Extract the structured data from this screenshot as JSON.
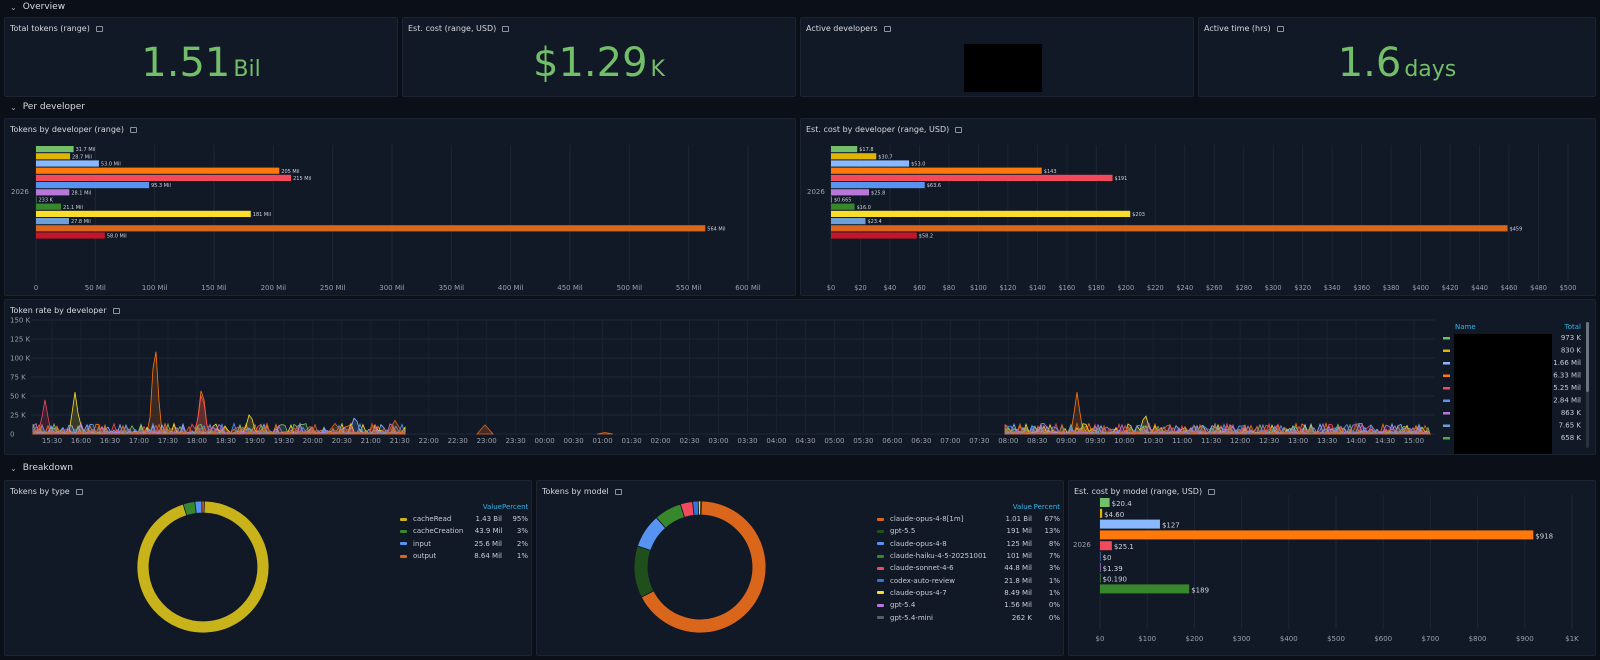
{
  "rows": {
    "overview": "Overview",
    "per_developer": "Per developer",
    "breakdown": "Breakdown"
  },
  "stats": {
    "total_tokens": {
      "title": "Total tokens (range)",
      "value": "1.51",
      "unit": "Bil"
    },
    "est_cost": {
      "title": "Est. cost (range, USD)",
      "value": "$1.29",
      "unit": "K"
    },
    "active_devs": {
      "title": "Active developers"
    },
    "active_time": {
      "title": "Active time (hrs)",
      "value": "1.6",
      "unit": "days"
    }
  },
  "colors": {
    "stat_green": "#73bf69",
    "panel_bg": "#111826",
    "legend_header": "#33b5e5"
  },
  "chart_data": [
    {
      "id": "tokens_by_developer",
      "title": "Tokens by developer (range)",
      "type": "bar",
      "orientation": "horizontal",
      "category": "2026",
      "labels": [
        "31.7 Mil",
        "28.7 Mil",
        "53.0 Mil",
        "205 Mil",
        "215 Mil",
        "95.3 Mil",
        "28.1 Mil",
        "233 K",
        "21.1 Mil",
        "181 Mil",
        "27.8 Mil",
        "564 Mil",
        "58.0 Mil"
      ],
      "values": [
        31.7,
        28.7,
        53.0,
        205,
        215,
        95.3,
        28.1,
        0.233,
        21.1,
        181,
        27.8,
        564,
        58.0
      ],
      "colors": [
        "#73bf69",
        "#e0b400",
        "#8ab8ff",
        "#ff780a",
        "#f2495c",
        "#5794f2",
        "#b877d9",
        "#56a64b",
        "#37872d",
        "#fade2a",
        "#6e9fd8",
        "#d9661a",
        "#c4162a"
      ],
      "xlim": [
        0,
        600
      ],
      "xticks": [
        "0",
        "50 Mil",
        "100 Mil",
        "150 Mil",
        "200 Mil",
        "250 Mil",
        "300 Mil",
        "350 Mil",
        "400 Mil",
        "450 Mil",
        "500 Mil",
        "550 Mil",
        "600 Mil"
      ]
    },
    {
      "id": "cost_by_developer",
      "title": "Est. cost by developer (range, USD)",
      "type": "bar",
      "orientation": "horizontal",
      "category": "2026",
      "labels": [
        "$17.8",
        "$30.7",
        "$53.0",
        "$143",
        "$191",
        "$63.6",
        "$25.8",
        "$0.665",
        "$16.0",
        "$203",
        "$23.4",
        "$459",
        "$58.2"
      ],
      "values": [
        17.8,
        30.7,
        53.0,
        143,
        191,
        63.6,
        25.8,
        0.665,
        16.0,
        203,
        23.4,
        459,
        58.2
      ],
      "colors": [
        "#73bf69",
        "#e0b400",
        "#8ab8ff",
        "#ff780a",
        "#f2495c",
        "#5794f2",
        "#b877d9",
        "#56a64b",
        "#37872d",
        "#fade2a",
        "#6e9fd8",
        "#d9661a",
        "#c4162a"
      ],
      "xlim": [
        0,
        500
      ],
      "xticks": [
        "$0",
        "$20",
        "$40",
        "$60",
        "$80",
        "$100",
        "$120",
        "$140",
        "$160",
        "$180",
        "$200",
        "$220",
        "$240",
        "$260",
        "$280",
        "$300",
        "$320",
        "$340",
        "$360",
        "$380",
        "$400",
        "$420",
        "$440",
        "$460",
        "$480",
        "$500"
      ]
    },
    {
      "id": "token_rate_by_developer",
      "title": "Token rate by developer",
      "type": "area",
      "ylim": [
        0,
        150
      ],
      "yticks": [
        "0",
        "25 K",
        "50 K",
        "75 K",
        "100 K",
        "125 K",
        "150 K"
      ],
      "xticks": [
        "15:30",
        "16:00",
        "16:30",
        "17:00",
        "17:30",
        "18:00",
        "18:30",
        "19:00",
        "19:30",
        "20:00",
        "20:30",
        "21:00",
        "21:30",
        "22:00",
        "22:30",
        "23:00",
        "23:30",
        "00:00",
        "00:30",
        "01:00",
        "01:30",
        "02:00",
        "02:30",
        "03:00",
        "03:30",
        "04:00",
        "04:30",
        "05:00",
        "05:30",
        "06:00",
        "06:30",
        "07:00",
        "07:30",
        "08:00",
        "08:30",
        "09:00",
        "09:30",
        "10:00",
        "10:30",
        "11:00",
        "11:30",
        "12:00",
        "12:30",
        "13:00",
        "13:30",
        "14:00",
        "14:30",
        "15:00"
      ],
      "series_colors": [
        "#ff780a",
        "#fade2a",
        "#8ab8ff",
        "#f2495c",
        "#73bf69",
        "#5794f2",
        "#b877d9",
        "#d9661a"
      ],
      "legend": {
        "name_header": "Name",
        "total_header": "Total",
        "totals": [
          "973 K",
          "830 K",
          "1.66 Mil",
          "6.33 Mil",
          "5.25 Mil",
          "2.84 Mil",
          "863 K",
          "7.65 K",
          "658 K"
        ],
        "colors": [
          "#73bf69",
          "#e0b400",
          "#8ab8ff",
          "#ff780a",
          "#f2495c",
          "#5794f2",
          "#b877d9",
          "#6e9fd8",
          "#56a64b"
        ]
      }
    },
    {
      "id": "tokens_by_type",
      "title": "Tokens by type",
      "type": "pie",
      "donut": true,
      "value_header": "Value",
      "percent_header": "Percent",
      "slices": [
        {
          "name": "cacheRead",
          "value": "1.43 Bil",
          "percent": "95%",
          "pct": 95,
          "color": "#c9b31a"
        },
        {
          "name": "cacheCreation",
          "value": "43.9 Mil",
          "percent": "3%",
          "pct": 2.9,
          "color": "#37872d"
        },
        {
          "name": "input",
          "value": "25.6 Mil",
          "percent": "2%",
          "pct": 1.7,
          "color": "#5794f2"
        },
        {
          "name": "output",
          "value": "8.64 Mil",
          "percent": "1%",
          "pct": 0.6,
          "color": "#d9661a"
        }
      ]
    },
    {
      "id": "tokens_by_model",
      "title": "Tokens by model",
      "type": "pie",
      "donut": true,
      "value_header": "Value",
      "percent_header": "Percent",
      "slices": [
        {
          "name": "claude-opus-4-8[1m]",
          "value": "1.01 Bil",
          "percent": "67%",
          "pct": 67,
          "color": "#d9661a"
        },
        {
          "name": "gpt-5.5",
          "value": "191 Mil",
          "percent": "13%",
          "pct": 12.7,
          "color": "#1f4f1a"
        },
        {
          "name": "claude-opus-4-8",
          "value": "125 Mil",
          "percent": "8%",
          "pct": 8.3,
          "color": "#5794f2"
        },
        {
          "name": "claude-haiku-4-5-20251001",
          "value": "101 Mil",
          "percent": "7%",
          "pct": 6.7,
          "color": "#37872d"
        },
        {
          "name": "claude-sonnet-4-6",
          "value": "44.8 Mil",
          "percent": "3%",
          "pct": 3.0,
          "color": "#f2495c"
        },
        {
          "name": "codex-auto-review",
          "value": "21.8 Mil",
          "percent": "1%",
          "pct": 1.4,
          "color": "#3274d9"
        },
        {
          "name": "claude-opus-4-7",
          "value": "8.49 Mil",
          "percent": "1%",
          "pct": 0.6,
          "color": "#fade2a"
        },
        {
          "name": "gpt-5.4",
          "value": "1.56 Mil",
          "percent": "0%",
          "pct": 0.1,
          "color": "#b877d9"
        },
        {
          "name": "gpt-5.4-mini",
          "value": "262 K",
          "percent": "0%",
          "pct": 0.02,
          "color": "#555f6e"
        }
      ]
    },
    {
      "id": "cost_by_model",
      "title": "Est. cost by model (range, USD)",
      "type": "bar",
      "orientation": "horizontal",
      "category": "2026",
      "labels": [
        "$20.4",
        "$4.60",
        "$127",
        "$918",
        "$25.1",
        "$0",
        "$1.39",
        "$0.190",
        "$189"
      ],
      "values": [
        20.4,
        4.6,
        127,
        918,
        25.1,
        0,
        1.39,
        0.19,
        189
      ],
      "colors": [
        "#73bf69",
        "#e0b400",
        "#8ab8ff",
        "#ff780a",
        "#f2495c",
        "#5794f2",
        "#b877d9",
        "#56a64b",
        "#37872d"
      ],
      "xlim": [
        0,
        1000
      ],
      "xticks": [
        "$0",
        "$100",
        "$200",
        "$300",
        "$400",
        "$500",
        "$600",
        "$700",
        "$800",
        "$900",
        "$1K"
      ]
    }
  ]
}
